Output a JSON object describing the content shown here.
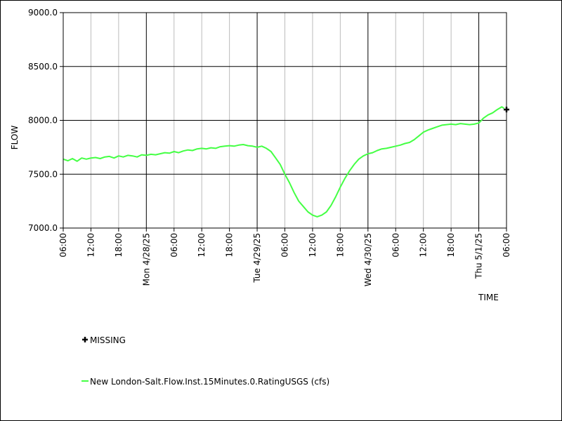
{
  "chart_data": {
    "type": "line",
    "title": "",
    "xlabel": "TIME",
    "ylabel": "FLOW",
    "ylim": [
      7000,
      9000
    ],
    "y_ticks": [
      "7000.0",
      "7500.0",
      "8000.0",
      "8500.0",
      "9000.0"
    ],
    "x_range_hours": [
      0,
      96
    ],
    "x_ticks": [
      {
        "h": 0,
        "label": "06:00"
      },
      {
        "h": 6,
        "label": "12:00"
      },
      {
        "h": 12,
        "label": "18:00"
      },
      {
        "h": 18,
        "label": "Mon 4/28/25"
      },
      {
        "h": 24,
        "label": "06:00"
      },
      {
        "h": 30,
        "label": "12:00"
      },
      {
        "h": 36,
        "label": "18:00"
      },
      {
        "h": 42,
        "label": "Tue 4/29/25"
      },
      {
        "h": 48,
        "label": "06:00"
      },
      {
        "h": 54,
        "label": "12:00"
      },
      {
        "h": 60,
        "label": "18:00"
      },
      {
        "h": 66,
        "label": "Wed 4/30/25"
      },
      {
        "h": 72,
        "label": "06:00"
      },
      {
        "h": 78,
        "label": "12:00"
      },
      {
        "h": 84,
        "label": "18:00"
      },
      {
        "h": 90,
        "label": "Thu 5/1/25"
      },
      {
        "h": 96,
        "label": "06:00"
      }
    ],
    "grid": true,
    "series": [
      {
        "name": "New London-Salt.Flow.Inst.15Minutes.0.RatingUSGS (cfs)",
        "color": "#44ff44",
        "points": [
          [
            0,
            7640
          ],
          [
            1,
            7625
          ],
          [
            2,
            7645
          ],
          [
            3,
            7620
          ],
          [
            4,
            7650
          ],
          [
            5,
            7640
          ],
          [
            6,
            7650
          ],
          [
            7,
            7655
          ],
          [
            8,
            7645
          ],
          [
            9,
            7660
          ],
          [
            10,
            7665
          ],
          [
            11,
            7650
          ],
          [
            12,
            7670
          ],
          [
            13,
            7660
          ],
          [
            14,
            7675
          ],
          [
            15,
            7670
          ],
          [
            16,
            7660
          ],
          [
            17,
            7680
          ],
          [
            18,
            7675
          ],
          [
            19,
            7685
          ],
          [
            20,
            7680
          ],
          [
            21,
            7690
          ],
          [
            22,
            7700
          ],
          [
            23,
            7695
          ],
          [
            24,
            7710
          ],
          [
            25,
            7700
          ],
          [
            26,
            7715
          ],
          [
            27,
            7725
          ],
          [
            28,
            7720
          ],
          [
            29,
            7735
          ],
          [
            30,
            7740
          ],
          [
            31,
            7735
          ],
          [
            32,
            7745
          ],
          [
            33,
            7740
          ],
          [
            34,
            7755
          ],
          [
            35,
            7760
          ],
          [
            36,
            7765
          ],
          [
            37,
            7760
          ],
          [
            38,
            7770
          ],
          [
            39,
            7775
          ],
          [
            40,
            7765
          ],
          [
            41,
            7760
          ],
          [
            42,
            7750
          ],
          [
            43,
            7760
          ],
          [
            44,
            7740
          ],
          [
            45,
            7710
          ],
          [
            46,
            7650
          ],
          [
            47,
            7590
          ],
          [
            48,
            7500
          ],
          [
            49,
            7420
          ],
          [
            50,
            7330
          ],
          [
            51,
            7250
          ],
          [
            52,
            7200
          ],
          [
            53,
            7150
          ],
          [
            54,
            7120
          ],
          [
            55,
            7105
          ],
          [
            56,
            7120
          ],
          [
            57,
            7150
          ],
          [
            58,
            7210
          ],
          [
            59,
            7290
          ],
          [
            60,
            7380
          ],
          [
            61,
            7460
          ],
          [
            62,
            7530
          ],
          [
            63,
            7590
          ],
          [
            64,
            7640
          ],
          [
            65,
            7670
          ],
          [
            66,
            7690
          ],
          [
            67,
            7700
          ],
          [
            68,
            7720
          ],
          [
            69,
            7735
          ],
          [
            70,
            7740
          ],
          [
            71,
            7750
          ],
          [
            72,
            7760
          ],
          [
            73,
            7770
          ],
          [
            74,
            7785
          ],
          [
            75,
            7795
          ],
          [
            76,
            7820
          ],
          [
            77,
            7855
          ],
          [
            78,
            7890
          ],
          [
            79,
            7910
          ],
          [
            80,
            7925
          ],
          [
            81,
            7940
          ],
          [
            82,
            7955
          ],
          [
            83,
            7960
          ],
          [
            84,
            7965
          ],
          [
            85,
            7960
          ],
          [
            86,
            7970
          ],
          [
            87,
            7965
          ],
          [
            88,
            7960
          ],
          [
            89,
            7965
          ],
          [
            90,
            7975
          ],
          [
            91,
            8020
          ],
          [
            92,
            8050
          ],
          [
            93,
            8070
          ],
          [
            94,
            8100
          ],
          [
            95,
            8125
          ],
          [
            95.5,
            8110
          ]
        ]
      }
    ],
    "missing_points": [
      [
        96,
        8100
      ]
    ],
    "legend": [
      {
        "symbol": "plus",
        "label": "MISSING"
      },
      {
        "symbol": "line",
        "label": "New London-Salt.Flow.Inst.15Minutes.0.RatingUSGS (cfs)",
        "color": "#44ff44"
      }
    ],
    "legend_position": "bottom-left"
  }
}
